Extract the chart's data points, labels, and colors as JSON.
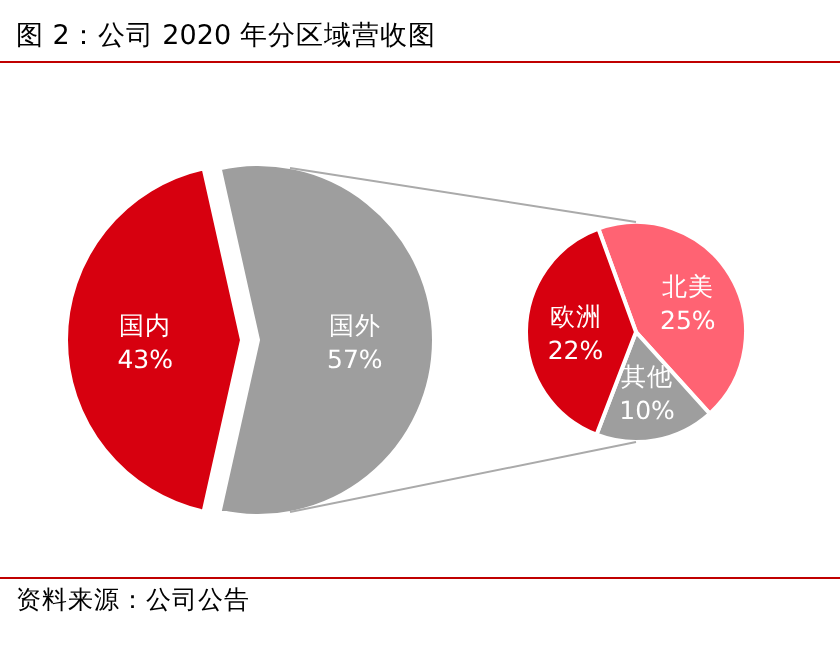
{
  "chart_data": [
    {
      "type": "pie",
      "title": "图 2：公司 2020 年分区域营收图",
      "categories": [
        "国内",
        "国外"
      ],
      "values": [
        43,
        57
      ],
      "colors": [
        "#d7000f",
        "#9e9e9e"
      ],
      "value_labels": [
        "43%",
        "57%"
      ]
    },
    {
      "type": "pie",
      "categories": [
        "北美",
        "其他",
        "欧洲"
      ],
      "values": [
        25,
        10,
        22
      ],
      "colors": [
        "#ff6373",
        "#9e9e9e",
        "#d7000f"
      ],
      "value_labels": [
        "25%",
        "10%",
        "22%"
      ],
      "annotations": [
        "资料来源：公司公告"
      ]
    }
  ]
}
